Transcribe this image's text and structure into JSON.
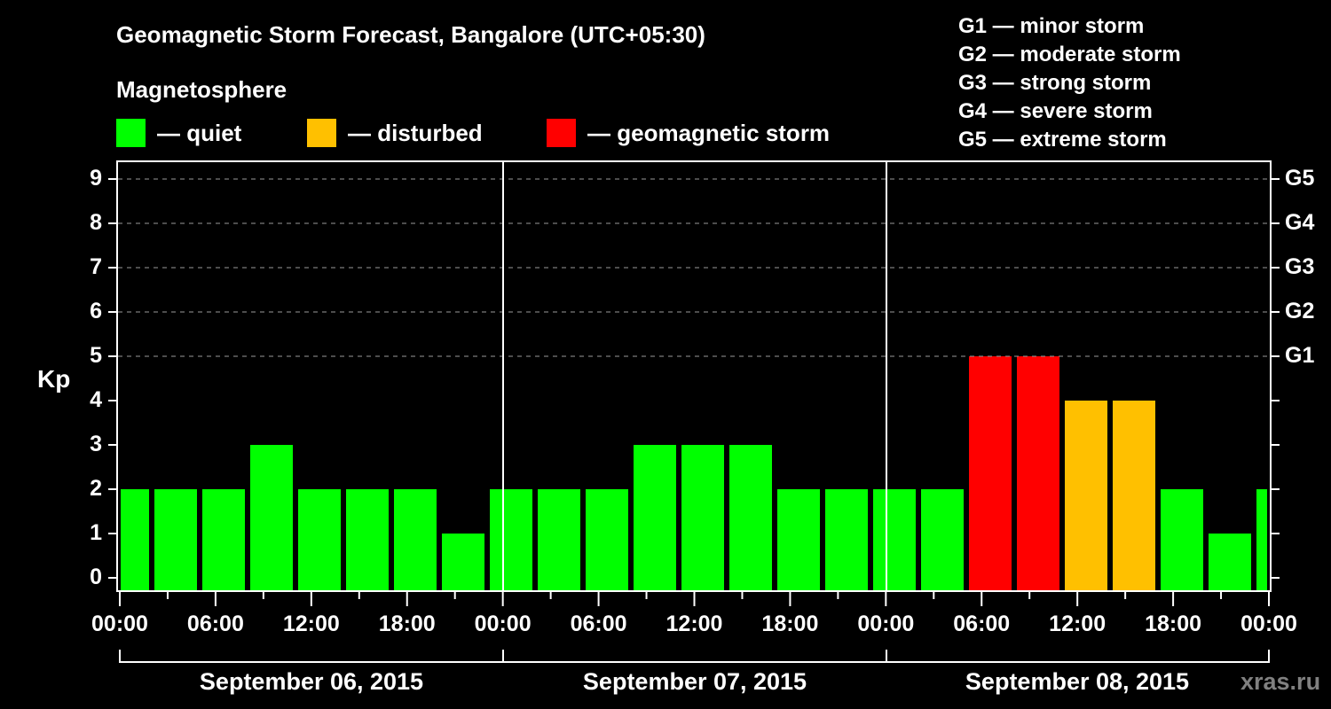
{
  "title": "Geomagnetic Storm Forecast, Bangalore (UTC+05:30)",
  "subtitle": "Magnetosphere",
  "legend": [
    {
      "label": "— quiet",
      "color": "#00ff00"
    },
    {
      "label": "— disturbed",
      "color": "#ffc000"
    },
    {
      "label": "— geomagnetic storm",
      "color": "#ff0000"
    }
  ],
  "g_scale": [
    "G1 — minor storm",
    "G2 — moderate storm",
    "G3 — strong storm",
    "G4 — severe storm",
    "G5 — extreme storm"
  ],
  "y_axis_label": "Kp",
  "y_ticks": [
    "0",
    "1",
    "2",
    "3",
    "4",
    "5",
    "6",
    "7",
    "8",
    "9"
  ],
  "g_ticks": [
    "G1",
    "G2",
    "G3",
    "G4",
    "G5"
  ],
  "x_ticks": [
    "00:00",
    "06:00",
    "12:00",
    "18:00",
    "00:00",
    "06:00",
    "12:00",
    "18:00",
    "00:00",
    "06:00",
    "12:00",
    "18:00",
    "00:00"
  ],
  "dates": [
    "September 06, 2015",
    "September 07, 2015",
    "September 08, 2015"
  ],
  "watermark": "xras.ru",
  "chart_data": {
    "type": "bar",
    "title": "Geomagnetic Storm Forecast, Bangalore (UTC+05:30)",
    "xlabel": "",
    "ylabel": "Kp",
    "ylim": [
      0,
      9
    ],
    "grid": "horizontal dashed at Kp 5-9",
    "legend_position": "top",
    "categories": [
      "Sep 06 00:00",
      "Sep 06 03:00",
      "Sep 06 06:00",
      "Sep 06 09:00",
      "Sep 06 12:00",
      "Sep 06 15:00",
      "Sep 06 18:00",
      "Sep 06 21:00",
      "Sep 07 00:00",
      "Sep 07 03:00",
      "Sep 07 06:00",
      "Sep 07 09:00",
      "Sep 07 12:00",
      "Sep 07 15:00",
      "Sep 07 18:00",
      "Sep 07 21:00",
      "Sep 08 00:00",
      "Sep 08 03:00",
      "Sep 08 06:00",
      "Sep 08 09:00",
      "Sep 08 12:00",
      "Sep 08 15:00",
      "Sep 08 18:00",
      "Sep 08 21:00",
      "Sep 09 00:00"
    ],
    "values": [
      2,
      2,
      2,
      3,
      2,
      2,
      2,
      1,
      2,
      2,
      2,
      3,
      3,
      3,
      2,
      2,
      2,
      2,
      5,
      5,
      4,
      4,
      2,
      1,
      2
    ],
    "colors_by_level": {
      "quiet": "#00ff00",
      "disturbed": "#ffc000",
      "geomagnetic storm": "#ff0000"
    },
    "right_axis": {
      "G1": 5,
      "G2": 6,
      "G3": 7,
      "G4": 8,
      "G5": 9
    }
  }
}
